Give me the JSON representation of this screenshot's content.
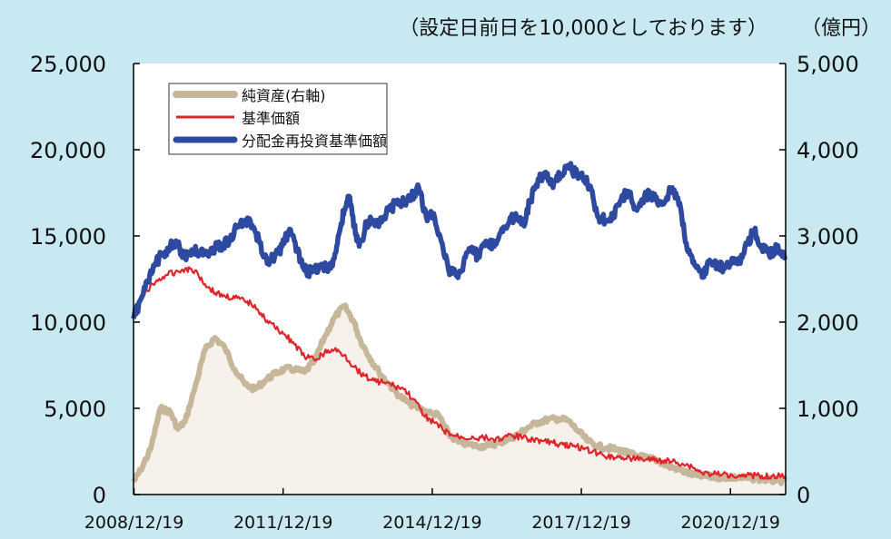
{
  "chart_data": {
    "type": "line",
    "note_top": "（設定日前日を10,000としております）",
    "right_unit": "（億円）",
    "x_tick_labels": [
      "2008/12/19",
      "2011/12/19",
      "2014/12/19",
      "2017/12/19",
      "2020/12/19"
    ],
    "y_left_tick_labels": [
      "0",
      "5,000",
      "10,000",
      "15,000",
      "20,000",
      "25,000"
    ],
    "y_right_tick_labels": [
      "0",
      "1,000",
      "2,000",
      "3,000",
      "4,000",
      "5,000"
    ],
    "ylim_left": [
      0,
      25000
    ],
    "ylim_right": [
      0,
      5000
    ],
    "xlim": [
      2008.96,
      2022.08
    ],
    "legend_position": "top-left",
    "colors": {
      "nav": "#c6b69a",
      "nav_fill": "#f7f1ec",
      "base_price": "#e0242a",
      "reinvest": "#2e4aa0",
      "background": "#c9e9f2"
    },
    "series": [
      {
        "name": "純資産(右軸)",
        "axis": "right",
        "x": [
          2008.96,
          2009.1,
          2009.3,
          2009.5,
          2009.7,
          2009.85,
          2010.0,
          2010.2,
          2010.4,
          2010.6,
          2010.8,
          2011.0,
          2011.2,
          2011.4,
          2011.6,
          2011.8,
          2012.0,
          2012.2,
          2012.4,
          2012.6,
          2012.8,
          2013.0,
          2013.2,
          2013.4,
          2013.5,
          2013.7,
          2013.9,
          2014.1,
          2014.3,
          2014.5,
          2014.7,
          2014.9,
          2015.1,
          2015.3,
          2015.5,
          2015.7,
          2015.9,
          2016.1,
          2016.3,
          2016.5,
          2016.7,
          2016.9,
          2017.1,
          2017.3,
          2017.5,
          2017.7,
          2017.9,
          2018.1,
          2018.3,
          2018.5,
          2018.7,
          2018.9,
          2019.1,
          2019.3,
          2019.5,
          2019.7,
          2019.9,
          2020.1,
          2020.3,
          2020.5,
          2020.7,
          2020.9,
          2021.1,
          2021.3,
          2021.5,
          2021.7,
          2021.9,
          2022.08
        ],
        "values": [
          150,
          280,
          520,
          1000,
          960,
          760,
          850,
          1250,
          1680,
          1820,
          1700,
          1450,
          1280,
          1220,
          1320,
          1400,
          1460,
          1450,
          1420,
          1550,
          1820,
          2050,
          2190,
          2000,
          1820,
          1600,
          1420,
          1280,
          1150,
          1060,
          1000,
          950,
          920,
          700,
          610,
          580,
          560,
          570,
          600,
          640,
          700,
          780,
          840,
          870,
          880,
          860,
          740,
          620,
          560,
          540,
          520,
          480,
          450,
          420,
          400,
          330,
          300,
          250,
          220,
          210,
          200,
          200,
          195,
          190,
          185,
          170,
          160,
          160
        ]
      },
      {
        "name": "基準価額",
        "axis": "left",
        "x": [
          2008.96,
          2009.2,
          2009.4,
          2009.6,
          2009.8,
          2010.0,
          2010.2,
          2010.4,
          2010.6,
          2010.8,
          2011.0,
          2011.2,
          2011.4,
          2011.6,
          2011.8,
          2012.0,
          2012.2,
          2012.4,
          2012.6,
          2012.8,
          2013.0,
          2013.2,
          2013.4,
          2013.6,
          2013.8,
          2014.0,
          2014.2,
          2014.4,
          2014.6,
          2014.8,
          2015.0,
          2015.2,
          2015.4,
          2015.6,
          2015.8,
          2016.0,
          2016.2,
          2016.4,
          2016.6,
          2016.8,
          2017.0,
          2017.2,
          2017.4,
          2017.6,
          2017.8,
          2018.0,
          2018.2,
          2018.4,
          2018.6,
          2018.8,
          2019.0,
          2019.2,
          2019.4,
          2019.6,
          2019.8,
          2020.0,
          2020.2,
          2020.4,
          2020.6,
          2020.8,
          2021.0,
          2021.2,
          2021.4,
          2021.6,
          2021.8,
          2022.08
        ],
        "values": [
          10500,
          11800,
          12300,
          12700,
          12900,
          13100,
          13000,
          12200,
          11700,
          11500,
          11400,
          11200,
          11000,
          10200,
          9700,
          9300,
          8700,
          8000,
          7800,
          8200,
          8400,
          8100,
          7400,
          6900,
          6600,
          6500,
          6300,
          6100,
          5500,
          4600,
          4200,
          3700,
          3400,
          3300,
          3300,
          3300,
          3200,
          3300,
          3400,
          3300,
          3200,
          3100,
          3000,
          2900,
          2800,
          2700,
          2500,
          2300,
          2200,
          2150,
          2100,
          2050,
          2000,
          1950,
          1900,
          1800,
          1600,
          1250,
          1200,
          1150,
          1150,
          1150,
          1120,
          1100,
          1060,
          1050
        ]
      },
      {
        "name": "分配金再投資基準価額",
        "axis": "left",
        "x": [
          2008.96,
          2009.1,
          2009.25,
          2009.4,
          2009.55,
          2009.7,
          2009.85,
          2010.0,
          2010.15,
          2010.3,
          2010.45,
          2010.6,
          2010.75,
          2010.9,
          2011.05,
          2011.2,
          2011.35,
          2011.5,
          2011.65,
          2011.8,
          2011.95,
          2012.1,
          2012.25,
          2012.4,
          2012.55,
          2012.7,
          2012.85,
          2013.0,
          2013.1,
          2013.2,
          2013.3,
          2013.4,
          2013.5,
          2013.65,
          2013.8,
          2013.95,
          2014.1,
          2014.25,
          2014.4,
          2014.55,
          2014.7,
          2014.85,
          2015.0,
          2015.15,
          2015.3,
          2015.45,
          2015.6,
          2015.75,
          2015.9,
          2016.05,
          2016.2,
          2016.35,
          2016.5,
          2016.65,
          2016.8,
          2016.95,
          2017.1,
          2017.25,
          2017.4,
          2017.55,
          2017.7,
          2017.85,
          2018.0,
          2018.15,
          2018.3,
          2018.45,
          2018.6,
          2018.75,
          2018.9,
          2019.05,
          2019.2,
          2019.35,
          2019.5,
          2019.65,
          2019.8,
          2019.95,
          2020.1,
          2020.25,
          2020.4,
          2020.55,
          2020.7,
          2020.85,
          2021.0,
          2021.15,
          2021.3,
          2021.45,
          2021.6,
          2021.75,
          2021.9,
          2022.08
        ],
        "values": [
          10200,
          11300,
          12300,
          13400,
          14000,
          14400,
          14500,
          13700,
          14200,
          14000,
          14100,
          14300,
          14500,
          14800,
          15500,
          15900,
          15600,
          14600,
          13400,
          13800,
          14400,
          15400,
          14200,
          13000,
          12900,
          13300,
          13100,
          13700,
          15200,
          16500,
          17300,
          15500,
          14400,
          15700,
          15900,
          15800,
          16500,
          16900,
          17000,
          17300,
          17800,
          16100,
          16300,
          14700,
          13000,
          12700,
          13400,
          14200,
          13800,
          14700,
          14500,
          15200,
          15700,
          16300,
          15700,
          17100,
          18300,
          18700,
          17800,
          18600,
          19100,
          18600,
          18400,
          17900,
          16100,
          15900,
          16000,
          17000,
          17600,
          16600,
          17100,
          17500,
          16900,
          17000,
          17800,
          16900,
          14200,
          13300,
          12600,
          13600,
          13300,
          13100,
          13700,
          13600,
          14500,
          15300,
          14300,
          13900,
          14300,
          13800
        ]
      }
    ]
  }
}
